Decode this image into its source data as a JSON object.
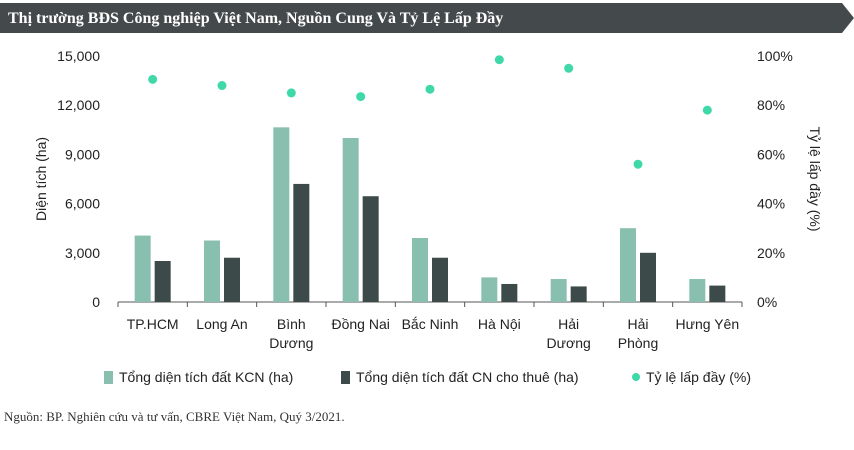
{
  "title": "Thị trường BĐS Công nghiệp Việt Nam, Nguồn Cung Và Tỷ Lệ Lấp Đầy",
  "source_note": "Nguồn: BP. Nghiên cứu và tư vấn, CBRE Việt Nam, Quý 3/2021.",
  "colors": {
    "banner": "#444a4b",
    "bar_total": "#88bfae",
    "bar_leased": "#3c4a4a",
    "rate_dot": "#3fd8a8",
    "axis": "#555555",
    "text": "#222222"
  },
  "chart_data": {
    "type": "bar",
    "title": "Thị trường BĐS Công nghiệp Việt Nam, Nguồn Cung Và Tỷ Lệ Lấp Đầy",
    "categories": [
      [
        "TP.HCM"
      ],
      [
        "Long An"
      ],
      [
        "Bình",
        "Dương"
      ],
      [
        "Đồng Nai"
      ],
      [
        "Bắc Ninh"
      ],
      [
        "Hà Nội"
      ],
      [
        "Hải",
        "Dương"
      ],
      [
        "Hải",
        "Phòng"
      ],
      [
        "Hưng Yên"
      ]
    ],
    "series": [
      {
        "name": "Tổng diện tích đất KCN (ha)",
        "type": "bar",
        "axis": "left",
        "values": [
          4050,
          3750,
          10650,
          10000,
          3900,
          1500,
          1400,
          4500,
          1400
        ]
      },
      {
        "name": "Tổng diện tích đất CN cho thuê (ha)",
        "type": "bar",
        "axis": "left",
        "values": [
          2500,
          2700,
          7200,
          6450,
          2700,
          1100,
          950,
          3000,
          1000
        ]
      },
      {
        "name": "Tỷ lệ lấp đầy (%)",
        "type": "scatter",
        "axis": "right",
        "values": [
          90.5,
          88,
          85,
          83.5,
          86.5,
          98.5,
          95,
          56,
          78
        ]
      }
    ],
    "ylabel": "Diện tích (ha)",
    "y2label": "Tỷ lệ lấp đầy (%)",
    "ylim": [
      0,
      15000
    ],
    "y2lim": [
      0,
      100
    ],
    "yticks": [
      "0",
      "3,000",
      "6,000",
      "9,000",
      "12,000",
      "15,000"
    ],
    "y2ticks": [
      "0%",
      "20%",
      "40%",
      "60%",
      "80%",
      "100%"
    ],
    "grid": false,
    "legend_position": "bottom"
  }
}
